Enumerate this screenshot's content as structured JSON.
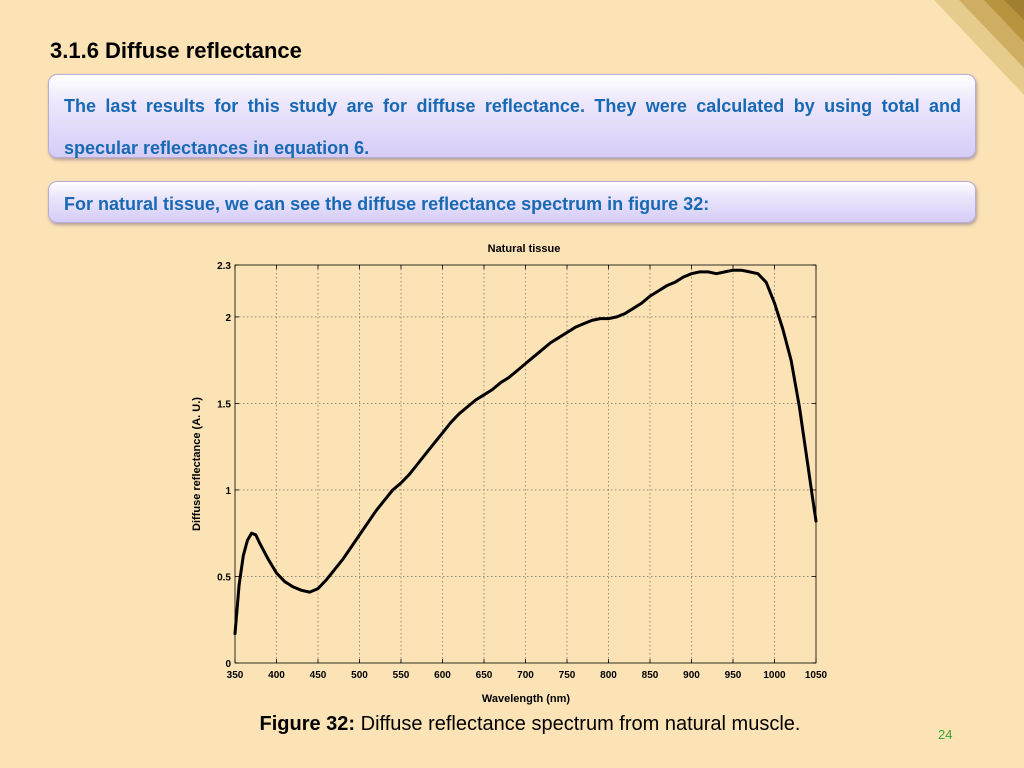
{
  "slide": {
    "title": "3.1.6 Diffuse reflectance",
    "paragraph1": "The last results for this study are for diffuse reflectance. They were calculated by using total and specular reflectances in equation 6.",
    "paragraph2": "For natural tissue, we can see the diffuse reflectance spectrum in figure 32:",
    "caption_label": "Figure 32:",
    "caption_text": " Diffuse reflectance spectrum from natural muscle.",
    "page_number": "24"
  },
  "colors": {
    "background": "#fbe3b6",
    "text_blue": "#1769b4",
    "page_number_green": "#3aa534",
    "curve": "#000000"
  },
  "chart_data": {
    "type": "line",
    "title": "Natural tissue",
    "xlabel": "Wavelength (nm)",
    "ylabel": "Diffuse reflectance (A. U.)",
    "xlim": [
      350,
      1050
    ],
    "ylim": [
      0,
      2.3
    ],
    "xticks": [
      350,
      400,
      450,
      500,
      550,
      600,
      650,
      700,
      750,
      800,
      850,
      900,
      950,
      1000,
      1050
    ],
    "yticks": [
      0,
      0.5,
      1,
      1.5,
      2,
      2.3
    ],
    "xtick_labels": [
      "350",
      "400",
      "450",
      "500",
      "550",
      "600",
      "650",
      "700",
      "750",
      "800",
      "850",
      "900",
      "950",
      "1000",
      "1050"
    ],
    "ytick_labels": [
      "0",
      "0.5",
      "1",
      "1.5",
      "2",
      "2.3"
    ],
    "grid": true,
    "series": [
      {
        "x": [
          350,
          355,
          360,
          365,
          370,
          375,
          380,
          390,
          400,
          410,
          420,
          430,
          440,
          450,
          460,
          470,
          480,
          490,
          500,
          510,
          520,
          530,
          540,
          550,
          560,
          570,
          580,
          590,
          600,
          610,
          620,
          630,
          640,
          650,
          660,
          670,
          680,
          690,
          700,
          710,
          720,
          730,
          740,
          750,
          760,
          770,
          780,
          790,
          800,
          810,
          820,
          830,
          840,
          850,
          860,
          870,
          880,
          890,
          900,
          910,
          920,
          930,
          940,
          950,
          960,
          970,
          980,
          990,
          1000,
          1010,
          1020,
          1030,
          1040,
          1045,
          1050
        ],
        "y": [
          0.17,
          0.45,
          0.62,
          0.71,
          0.75,
          0.74,
          0.69,
          0.6,
          0.52,
          0.47,
          0.44,
          0.42,
          0.41,
          0.43,
          0.48,
          0.54,
          0.6,
          0.67,
          0.74,
          0.81,
          0.88,
          0.94,
          1.0,
          1.04,
          1.09,
          1.15,
          1.21,
          1.27,
          1.33,
          1.39,
          1.44,
          1.48,
          1.52,
          1.55,
          1.58,
          1.62,
          1.65,
          1.69,
          1.73,
          1.77,
          1.81,
          1.85,
          1.88,
          1.91,
          1.94,
          1.96,
          1.98,
          1.99,
          1.99,
          2.0,
          2.02,
          2.05,
          2.08,
          2.12,
          2.15,
          2.18,
          2.2,
          2.23,
          2.25,
          2.26,
          2.26,
          2.25,
          2.26,
          2.27,
          2.27,
          2.26,
          2.25,
          2.2,
          2.08,
          1.93,
          1.75,
          1.48,
          1.15,
          0.98,
          0.82
        ]
      }
    ]
  }
}
